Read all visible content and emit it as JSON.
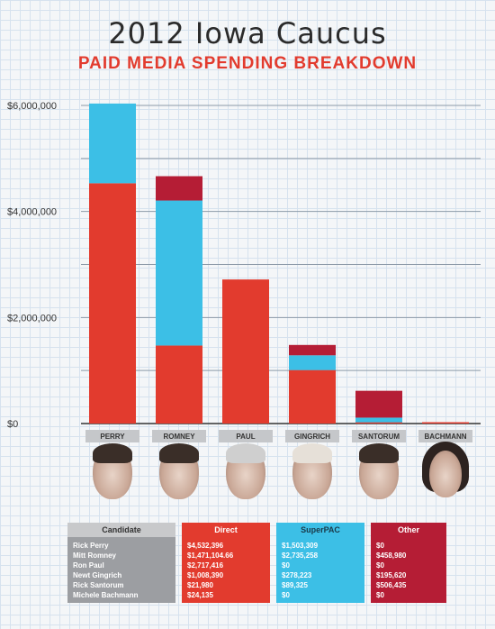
{
  "header": {
    "title": "2012 Iowa Caucus",
    "subtitle": "PAID MEDIA SPENDING BREAKDOWN"
  },
  "chart_data": {
    "type": "bar",
    "stacked": true,
    "categories": [
      "PERRY",
      "ROMNEY",
      "PAUL",
      "GINGRICH",
      "SANTORUM",
      "BACHMANN"
    ],
    "series": [
      {
        "name": "Direct",
        "color": "#e23b2e",
        "values": [
          4532396,
          1471104.66,
          2717416,
          1008390,
          21980,
          24135
        ]
      },
      {
        "name": "SuperPAC",
        "color": "#3cbfe6",
        "values": [
          1503309,
          2735258,
          0,
          278223,
          89325,
          0
        ]
      },
      {
        "name": "Other",
        "color": "#b51d35",
        "values": [
          0,
          458980,
          0,
          195620,
          506435,
          0
        ]
      }
    ],
    "ylim": [
      0,
      6000000
    ],
    "yticks": [
      0,
      2000000,
      4000000,
      6000000
    ],
    "ytick_labels": [
      "$0",
      "$2,000,000",
      "$4,000,000",
      "$6,000,000"
    ],
    "grid": true
  },
  "faces": [
    {
      "name": "perry",
      "hair": "dark"
    },
    {
      "name": "romney",
      "hair": "dark"
    },
    {
      "name": "paul",
      "hair": "gray"
    },
    {
      "name": "gingrich",
      "hair": "light"
    },
    {
      "name": "santorum",
      "hair": "dark"
    },
    {
      "name": "bachmann",
      "hair": "long"
    }
  ],
  "table": {
    "headers": [
      "Candidate",
      "Direct",
      "SuperPAC",
      "Other"
    ],
    "rows": [
      [
        "Rick Perry",
        "$4,532,396",
        "$1,503,309",
        "$0"
      ],
      [
        "Mitt Romney",
        "$1,471,104.66",
        "$2,735,258",
        "$458,980"
      ],
      [
        "Ron Paul",
        "$2,717,416",
        "$0",
        "$0"
      ],
      [
        "Newt Gingrich",
        "$1,008,390",
        "$278,223",
        "$195,620"
      ],
      [
        "Rick Santorum",
        "$21,980",
        "$89,325",
        "$506,435"
      ],
      [
        "Michele Bachmann",
        "$24,135",
        "$0",
        "$0"
      ]
    ]
  }
}
